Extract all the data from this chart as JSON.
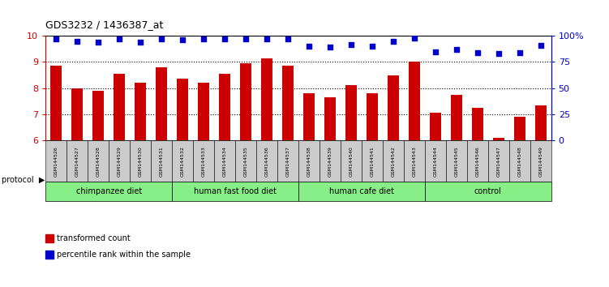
{
  "title": "GDS3232 / 1436387_at",
  "samples": [
    "GSM144526",
    "GSM144527",
    "GSM144528",
    "GSM144529",
    "GSM144530",
    "GSM144531",
    "GSM144532",
    "GSM144533",
    "GSM144534",
    "GSM144535",
    "GSM144536",
    "GSM144537",
    "GSM144538",
    "GSM144539",
    "GSM144540",
    "GSM144541",
    "GSM144542",
    "GSM144543",
    "GSM144544",
    "GSM144545",
    "GSM144546",
    "GSM144547",
    "GSM144548",
    "GSM144549"
  ],
  "bar_values": [
    8.85,
    8.0,
    7.9,
    8.55,
    8.2,
    8.8,
    8.35,
    8.2,
    8.55,
    8.95,
    9.15,
    8.85,
    7.8,
    7.65,
    8.1,
    7.8,
    8.5,
    9.0,
    7.05,
    7.75,
    7.25,
    6.1,
    6.9,
    7.35
  ],
  "percentile_values": [
    97,
    95,
    94,
    97,
    94,
    97,
    96,
    97,
    97,
    97,
    97,
    97,
    90,
    89,
    92,
    90,
    95,
    98,
    85,
    87,
    84,
    83,
    84,
    91
  ],
  "bar_color": "#cc0000",
  "dot_color": "#0000cc",
  "ymin": 6,
  "ymax": 10,
  "yticks_left": [
    6,
    7,
    8,
    9,
    10
  ],
  "yticks_right": [
    0,
    25,
    50,
    75,
    100
  ],
  "ytick_labels_right": [
    "0",
    "25",
    "50",
    "75",
    "100%"
  ],
  "dotted_yticks": [
    7,
    8,
    9
  ],
  "groups": [
    {
      "label": "chimpanzee diet",
      "start": 0,
      "end": 6
    },
    {
      "label": "human fast food diet",
      "start": 6,
      "end": 12
    },
    {
      "label": "human cafe diet",
      "start": 12,
      "end": 18
    },
    {
      "label": "control",
      "start": 18,
      "end": 24
    }
  ],
  "group_color": "#88ee88",
  "sample_box_color": "#cccccc",
  "legend_items": [
    {
      "label": "transformed count",
      "color": "#cc0000"
    },
    {
      "label": "percentile rank within the sample",
      "color": "#0000cc"
    }
  ],
  "protocol_label": "protocol",
  "background_color": "#ffffff",
  "tick_color_left": "#cc0000",
  "tick_color_right": "#0000cc"
}
